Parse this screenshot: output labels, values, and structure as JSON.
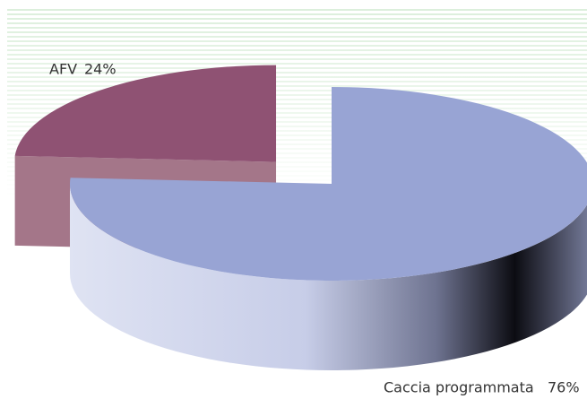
{
  "chart_data": {
    "type": "pie3d",
    "categories": [
      "AFV",
      "Caccia programmata"
    ],
    "values": [
      24,
      76
    ],
    "value_labels": [
      "24%",
      "76%"
    ],
    "colors": [
      "#8f5273",
      "#98a4d4"
    ]
  }
}
